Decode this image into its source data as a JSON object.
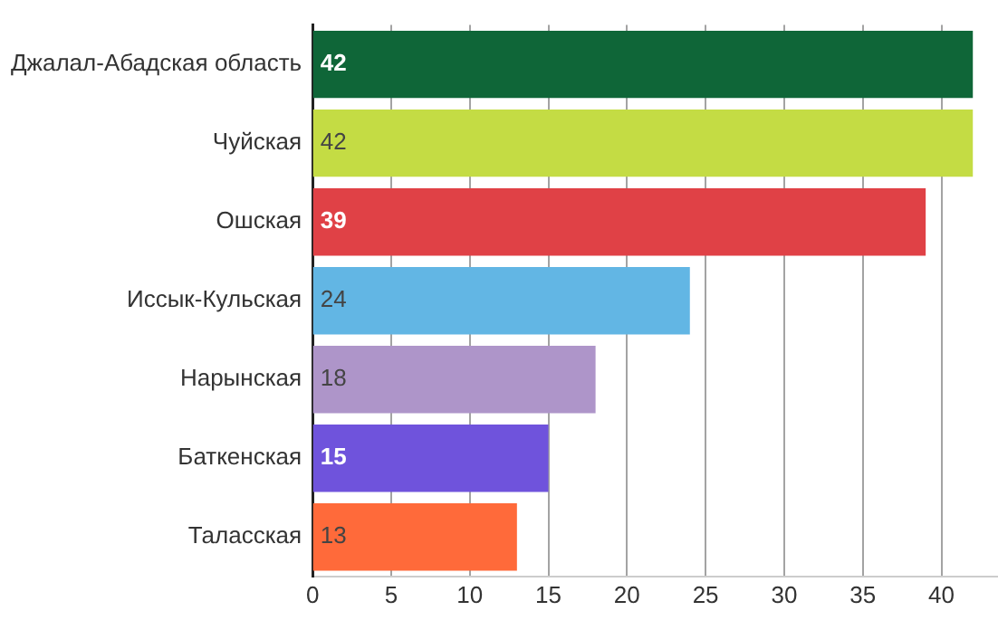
{
  "chart_data": {
    "type": "bar",
    "orientation": "horizontal",
    "categories": [
      "Джалал-Абадская область",
      "Чуйская",
      "Ошская",
      "Иссык-Кульская",
      "Нарынская",
      "Баткенская",
      "Таласская"
    ],
    "values": [
      42,
      42,
      39,
      24,
      18,
      15,
      13
    ],
    "colors": [
      "#0f6638",
      "#c4dc44",
      "#e04146",
      "#62b6e4",
      "#ae95c9",
      "#6f53dc",
      "#ff6a3a"
    ],
    "xlim": [
      0,
      43.6
    ],
    "xticks": [
      0,
      5,
      10,
      15,
      20,
      25,
      30,
      35,
      40
    ],
    "grid": "x",
    "legend": false,
    "data_labels": true
  }
}
